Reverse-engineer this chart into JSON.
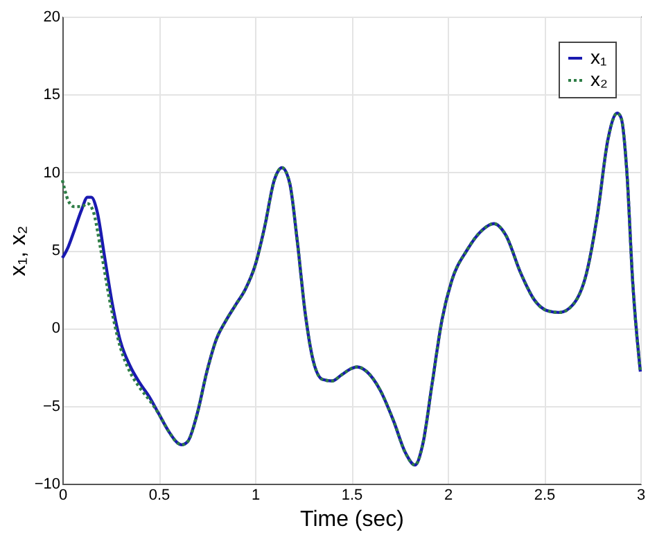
{
  "chart_data": {
    "type": "line",
    "xlabel": "Time (sec)",
    "ylabel": "x₁, x₂",
    "xlim": [
      0,
      3
    ],
    "xticks": [
      0,
      0.5,
      1,
      1.5,
      2,
      2.5,
      3
    ],
    "ylim": [
      -10,
      20
    ],
    "yticks": [
      -10,
      -5,
      0,
      5,
      10,
      15,
      20
    ],
    "grid": true,
    "legend": "top right",
    "series": [
      {
        "name": "x₁",
        "color": "#1a1ab0",
        "line_style": "solid",
        "x": [
          0,
          0.03,
          0.06,
          0.1,
          0.13,
          0.15,
          0.18,
          0.22,
          0.26,
          0.3,
          0.35,
          0.4,
          0.45,
          0.5,
          0.55,
          0.6,
          0.62,
          0.65,
          0.7,
          0.75,
          0.8,
          0.85,
          0.9,
          0.95,
          1.0,
          1.05,
          1.1,
          1.14,
          1.18,
          1.22,
          1.26,
          1.3,
          1.35,
          1.4,
          1.45,
          1.5,
          1.53,
          1.58,
          1.65,
          1.72,
          1.78,
          1.83,
          1.87,
          1.92,
          1.97,
          2.02,
          2.1,
          2.18,
          2.24,
          2.3,
          2.38,
          2.45,
          2.52,
          2.58,
          2.65,
          2.72,
          2.78,
          2.83,
          2.88,
          2.9,
          2.93,
          2.96,
          3.0
        ],
        "values": [
          4.5,
          5.2,
          6.2,
          7.6,
          8.4,
          8.4,
          7.5,
          4.5,
          1.5,
          -0.8,
          -2.4,
          -3.5,
          -4.4,
          -5.5,
          -6.6,
          -7.4,
          -7.5,
          -7.3,
          -5.5,
          -2.8,
          -0.7,
          0.5,
          1.5,
          2.5,
          4.0,
          6.5,
          9.5,
          10.3,
          9.3,
          5.5,
          1.0,
          -2.0,
          -3.3,
          -3.4,
          -3.0,
          -2.6,
          -2.5,
          -2.8,
          -4.0,
          -6.0,
          -8.0,
          -8.8,
          -7.5,
          -3.5,
          0.5,
          3.0,
          5.0,
          6.3,
          6.7,
          6.0,
          3.5,
          1.8,
          1.1,
          1.0,
          1.5,
          3.5,
          7.5,
          12.0,
          13.8,
          13.5,
          10.0,
          3.0,
          -2.8
        ]
      },
      {
        "name": "x₂",
        "color": "#2e7d46",
        "line_style": "dotted",
        "x": [
          0,
          0.03,
          0.06,
          0.1,
          0.13,
          0.16,
          0.2,
          0.25,
          0.3,
          0.35,
          0.4,
          0.45,
          0.5,
          0.55,
          0.6,
          0.62,
          0.65,
          0.7,
          0.75,
          0.8,
          0.85,
          0.9,
          0.95,
          1.0,
          1.05,
          1.1,
          1.14,
          1.18,
          1.22,
          1.26,
          1.3,
          1.35,
          1.4,
          1.45,
          1.5,
          1.53,
          1.58,
          1.65,
          1.72,
          1.78,
          1.83,
          1.87,
          1.92,
          1.97,
          2.02,
          2.1,
          2.18,
          2.24,
          2.3,
          2.38,
          2.45,
          2.52,
          2.58,
          2.65,
          2.72,
          2.78,
          2.83,
          2.88,
          2.9,
          2.93,
          2.96,
          3.0
        ],
        "values": [
          9.5,
          8.2,
          7.8,
          7.8,
          8.0,
          7.5,
          5.0,
          1.5,
          -1.2,
          -2.8,
          -3.8,
          -4.6,
          -5.5,
          -6.6,
          -7.4,
          -7.5,
          -7.3,
          -5.5,
          -2.8,
          -0.7,
          0.5,
          1.5,
          2.5,
          4.0,
          6.5,
          9.5,
          10.3,
          9.3,
          5.5,
          1.0,
          -2.0,
          -3.3,
          -3.4,
          -3.0,
          -2.6,
          -2.5,
          -2.8,
          -4.0,
          -6.0,
          -8.0,
          -8.8,
          -7.5,
          -3.5,
          0.5,
          3.0,
          5.0,
          6.3,
          6.7,
          6.0,
          3.5,
          1.8,
          1.1,
          1.0,
          1.5,
          3.5,
          7.5,
          12.0,
          13.8,
          13.5,
          10.0,
          3.0,
          -2.8
        ]
      }
    ]
  }
}
